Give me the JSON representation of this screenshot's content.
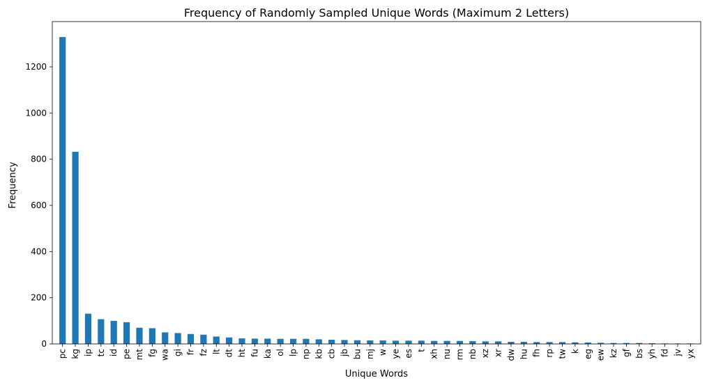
{
  "chart_data": {
    "type": "bar",
    "title": "Frequency of Randomly Sampled Unique Words (Maximum 2 Letters)",
    "xlabel": "Unique Words",
    "ylabel": "Frequency",
    "ylim": [
      0,
      1396
    ],
    "yticks": [
      0,
      200,
      400,
      600,
      800,
      1000,
      1200
    ],
    "grid": false,
    "bar_color": "#1f77b4",
    "categories": [
      "pc",
      "kg",
      "ip",
      "tc",
      "id",
      "pe",
      "mt",
      "fg",
      "wa",
      "gi",
      "fr",
      "fz",
      "lt",
      "dt",
      "ht",
      "fu",
      "ka",
      "ol",
      "lp",
      "np",
      "kb",
      "cb",
      "jb",
      "bu",
      "mj",
      "w",
      "ye",
      "es",
      "t",
      "xh",
      "nu",
      "rm",
      "nb",
      "xz",
      "xr",
      "dw",
      "hu",
      "fh",
      "rp",
      "tw",
      "k",
      "eg",
      "ew",
      "kz",
      "gf",
      "bs",
      "yh",
      "fd",
      "jv",
      "yx"
    ],
    "values": [
      1329,
      832,
      131,
      107,
      100,
      94,
      70,
      68,
      50,
      47,
      43,
      40,
      32,
      28,
      24,
      23,
      23,
      22,
      22,
      22,
      20,
      18,
      17,
      16,
      15,
      15,
      14,
      14,
      14,
      13,
      13,
      13,
      12,
      11,
      11,
      9,
      9,
      8,
      8,
      8,
      7,
      6,
      5,
      4,
      4,
      4,
      3,
      2,
      2,
      2
    ]
  }
}
